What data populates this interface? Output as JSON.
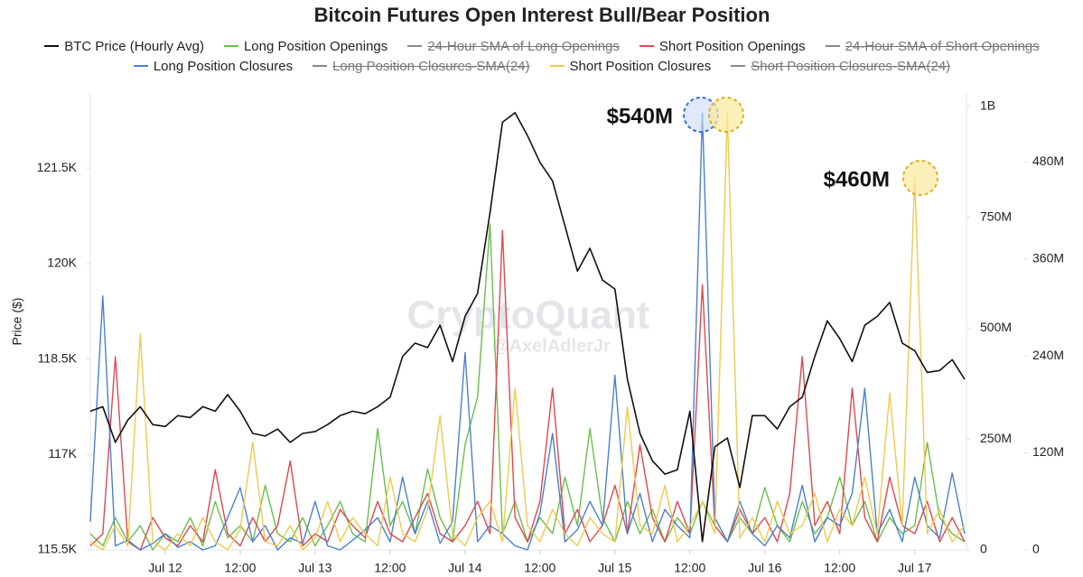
{
  "chart_data": {
    "type": "line",
    "title": "Bitcoin Futures Open Interest Bull/Bear Position",
    "ylabel": "Price ($)",
    "watermark": [
      "CryptoQuant",
      "@AxelAdlerJr"
    ],
    "annotations": [
      "$540M",
      "$460M"
    ],
    "xlim": [
      0,
      140
    ],
    "xticks": [
      {
        "value": 12,
        "label": "Jul 12"
      },
      {
        "value": 24,
        "label": "12:00"
      },
      {
        "value": 36,
        "label": "Jul 13"
      },
      {
        "value": 48,
        "label": "12:00"
      },
      {
        "value": 60,
        "label": "Jul 14"
      },
      {
        "value": 72,
        "label": "12:00"
      },
      {
        "value": 84,
        "label": "Jul 15"
      },
      {
        "value": 96,
        "label": "12:00"
      },
      {
        "value": 108,
        "label": "Jul 16"
      },
      {
        "value": 120,
        "label": "12:00"
      },
      {
        "value": 132,
        "label": "Jul 17"
      }
    ],
    "ylim": [
      115500,
      122680
    ],
    "yticks": [
      {
        "value": 115500,
        "label": "115.5K"
      },
      {
        "value": 117000,
        "label": "117K"
      },
      {
        "value": 118500,
        "label": "118.5K"
      },
      {
        "value": 120000,
        "label": "120K"
      },
      {
        "value": 121500,
        "label": "121.5K"
      }
    ],
    "y2lim": [
      0,
      565
    ],
    "y2ticks": [
      0,
      {
        "value": 120,
        "label": "120M"
      },
      {
        "value": 240,
        "label": "240M"
      },
      {
        "value": 360,
        "label": "360M"
      },
      {
        "value": 480,
        "label": "480M"
      }
    ],
    "y3lim": [
      0,
      1030
    ],
    "y3ticks": [
      0,
      {
        "value": 250,
        "label": "250M"
      },
      {
        "value": 500,
        "label": "500M"
      },
      {
        "value": 750,
        "label": "750M"
      },
      {
        "value": 1000,
        "label": "1B"
      }
    ],
    "x": [
      0,
      2,
      4,
      6,
      8,
      10,
      12,
      14,
      16,
      18,
      20,
      22,
      24,
      26,
      28,
      30,
      32,
      34,
      36,
      38,
      40,
      42,
      44,
      46,
      48,
      50,
      52,
      54,
      56,
      58,
      60,
      62,
      64,
      66,
      68,
      70,
      72,
      74,
      76,
      78,
      80,
      82,
      84,
      86,
      88,
      90,
      92,
      94,
      96,
      98,
      100,
      102,
      104,
      106,
      108,
      110,
      112,
      114,
      116,
      118,
      120,
      122,
      124,
      126,
      128,
      130,
      132,
      134,
      136,
      138,
      140
    ],
    "series": [
      {
        "name": "BTC Price (Hourly Avg)",
        "color": "#111111",
        "axis": "y",
        "values": [
          117680,
          117750,
          117190,
          117540,
          117750,
          117470,
          117440,
          117610,
          117580,
          117750,
          117680,
          117940,
          117680,
          117330,
          117290,
          117400,
          117190,
          117330,
          117360,
          117470,
          117610,
          117680,
          117640,
          117750,
          117900,
          118540,
          118750,
          118680,
          119030,
          118460,
          119170,
          119530,
          120800,
          122220,
          122370,
          122010,
          121590,
          121300,
          120590,
          119880,
          120240,
          119740,
          119600,
          118180,
          117330,
          116900,
          116690,
          116760,
          117680,
          115630,
          117120,
          117260,
          116480,
          117610,
          117610,
          117400,
          117750,
          117900,
          118540,
          119100,
          118820,
          118460,
          119030,
          119170,
          119390,
          118750,
          118630,
          118290,
          118320,
          118490,
          118180
        ]
      },
      {
        "name": "Long Position Openings",
        "color": "#6abf4b",
        "axis": "y2",
        "values": [
          20,
          5,
          40,
          10,
          30,
          0,
          20,
          10,
          40,
          5,
          60,
          15,
          30,
          10,
          80,
          20,
          10,
          40,
          5,
          30,
          60,
          20,
          10,
          150,
          30,
          60,
          20,
          100,
          40,
          10,
          130,
          189,
          403,
          20,
          60,
          10,
          40,
          20,
          90,
          30,
          150,
          40,
          10,
          60,
          20,
          50,
          10,
          40,
          20,
          60,
          30,
          10,
          40,
          20,
          77,
          30,
          10,
          60,
          20,
          40,
          90,
          30,
          60,
          10,
          40,
          20,
          30,
          133,
          40,
          20,
          10
        ]
      },
      {
        "name": "24-Hour SMA of Long Openings",
        "color": "#888888",
        "hidden": true
      },
      {
        "name": "Short Position Openings",
        "color": "#e0474c",
        "axis": "y2",
        "values": [
          5,
          20,
          239,
          10,
          0,
          40,
          15,
          5,
          30,
          10,
          99,
          20,
          5,
          40,
          10,
          30,
          110,
          5,
          20,
          10,
          50,
          30,
          15,
          60,
          20,
          10,
          40,
          70,
          20,
          10,
          30,
          60,
          20,
          395,
          40,
          10,
          60,
          200,
          20,
          50,
          10,
          30,
          80,
          20,
          130,
          40,
          10,
          60,
          20,
          328,
          30,
          10,
          50,
          20,
          40,
          10,
          70,
          239,
          30,
          60,
          20,
          200,
          40,
          10,
          90,
          30,
          20,
          60,
          10,
          40,
          10
        ]
      },
      {
        "name": "24-Hour SMA of Short Openings",
        "color": "#888888",
        "hidden": true
      },
      {
        "name": "Long Position Closures",
        "color": "#4a7fd4",
        "axis": "y2",
        "values": [
          35,
          314,
          5,
          12,
          0,
          8,
          20,
          3,
          10,
          0,
          5,
          40,
          77,
          10,
          30,
          0,
          15,
          8,
          60,
          5,
          0,
          12,
          25,
          40,
          10,
          90,
          20,
          60,
          8,
          35,
          244,
          10,
          30,
          20,
          5,
          0,
          45,
          144,
          10,
          25,
          60,
          30,
          216,
          20,
          70,
          10,
          50,
          30,
          15,
          540,
          40,
          10,
          60,
          20,
          5,
          30,
          15,
          80,
          10,
          40,
          30,
          70,
          200,
          20,
          50,
          10,
          90,
          30,
          15,
          95,
          20
        ]
      },
      {
        "name": "Long Position Closures-SMA(24)",
        "color": "#888888",
        "hidden": true
      },
      {
        "name": "Short Position Closures",
        "color": "#f2c94c",
        "axis": "y2",
        "values": [
          10,
          0,
          30,
          5,
          267,
          10,
          0,
          20,
          5,
          40,
          10,
          0,
          25,
          133,
          10,
          5,
          30,
          0,
          15,
          60,
          10,
          40,
          20,
          5,
          90,
          20,
          10,
          50,
          166,
          20,
          5,
          40,
          60,
          10,
          200,
          30,
          10,
          50,
          20,
          5,
          40,
          20,
          10,
          177,
          30,
          20,
          80,
          10,
          30,
          60,
          20,
          540,
          15,
          40,
          10,
          60,
          20,
          30,
          70,
          10,
          50,
          30,
          90,
          20,
          194,
          30,
          460,
          20,
          50,
          10,
          30
        ]
      },
      {
        "name": "Short Position Closures-SMA(24)",
        "color": "#888888",
        "hidden": true
      }
    ]
  }
}
